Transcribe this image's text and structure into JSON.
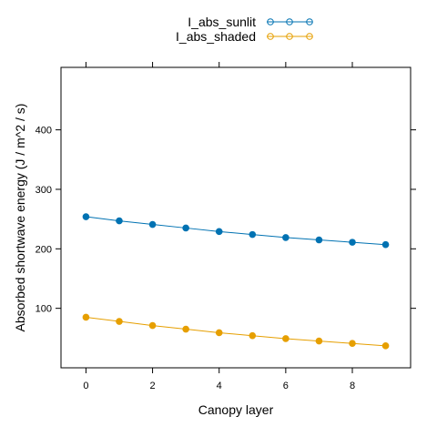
{
  "chart_data": {
    "type": "line",
    "xlabel": "Canopy layer",
    "ylabel": "Absorbed shortwave energy (J / m^2 / s)",
    "x": [
      0,
      1,
      2,
      3,
      4,
      5,
      6,
      7,
      8,
      9
    ],
    "xlim": [
      -0.75,
      9.75
    ],
    "ylim": [
      0,
      505
    ],
    "x_ticks": [
      0,
      2,
      4,
      6,
      8
    ],
    "y_ticks": [
      100,
      200,
      300,
      400
    ],
    "grid": false,
    "legend_position": "top",
    "series": [
      {
        "name": "I_abs_sunlit",
        "color": "#0072B2",
        "values": [
          254,
          247,
          241,
          235,
          229,
          224,
          219,
          215,
          211,
          207
        ]
      },
      {
        "name": "I_abs_shaded",
        "color": "#E69F00",
        "values": [
          85,
          78,
          71,
          65,
          59,
          54,
          49,
          45,
          41,
          37
        ]
      }
    ]
  }
}
